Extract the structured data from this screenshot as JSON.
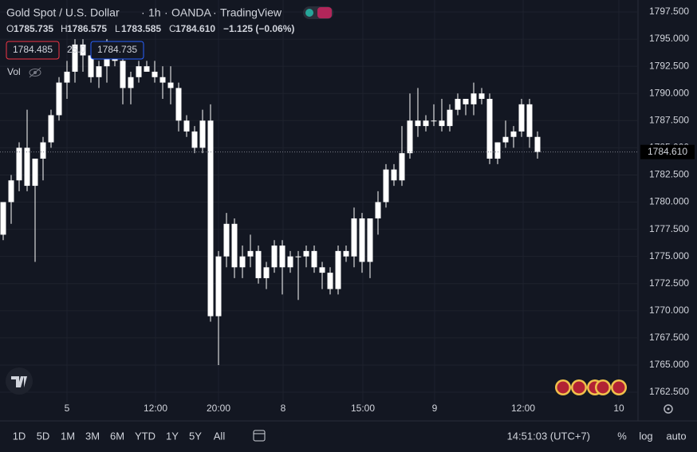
{
  "header": {
    "symbol": "Gold Spot / U.S. Dollar",
    "separator": "·",
    "interval": "1h",
    "exchange": "OANDA",
    "source": "TradingView"
  },
  "legend": {
    "ohlc": [
      {
        "label": "O",
        "value": "1785.735"
      },
      {
        "label": "H",
        "value": "1786.575"
      },
      {
        "label": "L",
        "value": "1783.585"
      },
      {
        "label": "C",
        "value": "1784.610"
      }
    ],
    "change": "−1.125 (−0.06%)",
    "sell": "1784.485",
    "spread": "25.0",
    "buy": "1784.735",
    "volume": "Vol"
  },
  "chart_data": {
    "type": "candlestick",
    "color": "#ffffff",
    "open": [
      1777,
      1780,
      1782,
      1785,
      1781.5,
      1784,
      1785.5,
      1788,
      1791,
      1792,
      1794.5,
      1793.5,
      1791.5,
      1792.5,
      1794,
      1793,
      1790.5,
      1791.5,
      1792.5,
      1792,
      1791.5,
      1791,
      1790.5,
      1787.5,
      1786.5,
      1785,
      1787.5,
      1769.5,
      1775,
      1778,
      1774,
      1775,
      1775.5,
      1773,
      1774,
      1776,
      1774,
      1775,
      1775,
      1775.5,
      1774,
      1773.5,
      1772,
      1775.5,
      1775,
      1778.5,
      1774.5,
      1778.5,
      1780,
      1783,
      1782,
      1784.5,
      1787.5,
      1787,
      1787.5,
      1787.5,
      1787,
      1788.5,
      1789.5,
      1789,
      1790,
      1789.5,
      1784,
      1785.5,
      1786,
      1786.5,
      1789,
      1786
    ],
    "high": [
      1780,
      1782.5,
      1785.5,
      1788.5,
      1784,
      1786,
      1788.5,
      1791.5,
      1793,
      1795,
      1795,
      1794.5,
      1793,
      1795,
      1794.5,
      1793.5,
      1792,
      1793,
      1793,
      1793,
      1792.5,
      1792.5,
      1791,
      1788,
      1787,
      1788.5,
      1789,
      1775.5,
      1779,
      1778.5,
      1776,
      1777,
      1776,
      1774.5,
      1776.5,
      1776.5,
      1775.5,
      1775.5,
      1776,
      1776,
      1774.5,
      1774,
      1776,
      1776,
      1779.5,
      1779,
      1778.5,
      1781,
      1783.5,
      1783.5,
      1787,
      1790,
      1790.5,
      1788,
      1789,
      1789.5,
      1789,
      1790,
      1789.5,
      1791,
      1790.5,
      1790,
      1785.5,
      1787.5,
      1787,
      1789.5,
      1789.5,
      1786.5
    ],
    "low": [
      1776.5,
      1778,
      1781,
      1781,
      1774.5,
      1782,
      1785,
      1787.5,
      1789.5,
      1791,
      1792,
      1791,
      1790.5,
      1791,
      1792.5,
      1789,
      1789,
      1791,
      1792,
      1791,
      1789.5,
      1789,
      1786.5,
      1786,
      1784.5,
      1784.5,
      1769,
      1765,
      1774,
      1773,
      1773,
      1774,
      1772.5,
      1772,
      1773.5,
      1771.5,
      1773.5,
      1771,
      1774,
      1773.5,
      1772,
      1771.5,
      1771.5,
      1774.5,
      1774,
      1773.5,
      1773,
      1777,
      1779.5,
      1781.5,
      1781.5,
      1784,
      1786,
      1786.5,
      1787,
      1786.5,
      1786.5,
      1788,
      1788,
      1788,
      1789,
      1783.5,
      1783.5,
      1785,
      1785,
      1786,
      1785,
      1784
    ],
    "close": [
      1780,
      1782,
      1785,
      1781.5,
      1784,
      1785.5,
      1788,
      1791,
      1792,
      1794.5,
      1793.5,
      1791.5,
      1792.5,
      1794,
      1793,
      1790.5,
      1791.5,
      1792.5,
      1792,
      1791.5,
      1791,
      1790.5,
      1787.5,
      1786.5,
      1785,
      1787.5,
      1769.5,
      1775,
      1778,
      1774,
      1775,
      1775.5,
      1773,
      1774,
      1776,
      1774,
      1775,
      1775,
      1775.5,
      1774,
      1773.5,
      1772,
      1775.5,
      1775,
      1778.5,
      1774.5,
      1778.5,
      1780,
      1783,
      1782,
      1784.5,
      1787.5,
      1787,
      1787.5,
      1787.5,
      1787,
      1788.5,
      1789.5,
      1789,
      1790,
      1789.5,
      1784,
      1785.5,
      1786,
      1786.5,
      1789,
      1786,
      1784.61
    ],
    "last_price": {
      "value": 1784.61,
      "label": "1784.610"
    },
    "xlim": [
      -0.4,
      79.6
    ],
    "xticks": [
      {
        "value": 8,
        "label": "5"
      },
      {
        "value": 19.1,
        "label": "12:00"
      },
      {
        "value": 27,
        "label": "20:00"
      },
      {
        "value": 35.1,
        "label": "8"
      },
      {
        "value": 45.1,
        "label": "15:00"
      },
      {
        "value": 54.1,
        "label": "9"
      },
      {
        "value": 65.2,
        "label": "12:00"
      },
      {
        "value": 77.2,
        "label": "10"
      }
    ],
    "ylim": [
      1761.55,
      1798.6
    ],
    "yticks": [
      {
        "value": 1762.5,
        "label": "1762.500"
      },
      {
        "value": 1765,
        "label": "1765.000"
      },
      {
        "value": 1767.5,
        "label": "1767.500"
      },
      {
        "value": 1770,
        "label": "1770.000"
      },
      {
        "value": 1772.5,
        "label": "1772.500"
      },
      {
        "value": 1775,
        "label": "1775.000"
      },
      {
        "value": 1777.5,
        "label": "1777.500"
      },
      {
        "value": 1780,
        "label": "1780.000"
      },
      {
        "value": 1782.5,
        "label": "1782.500"
      },
      {
        "value": 1785,
        "label": "1785.000"
      },
      {
        "value": 1787.5,
        "label": "1787.500"
      },
      {
        "value": 1790,
        "label": "1790.000"
      },
      {
        "value": 1792.5,
        "label": "1792.500"
      },
      {
        "value": 1795,
        "label": "1795.000"
      },
      {
        "value": 1797.5,
        "label": "1797.500"
      }
    ],
    "grid": true
  },
  "toolbar": {
    "ranges": [
      "1D",
      "5D",
      "1M",
      "3M",
      "6M",
      "YTD",
      "1Y",
      "5Y",
      "All"
    ],
    "clock": "14:51:03 (UTC+7)",
    "percent": "%",
    "log": "log",
    "auto": "auto"
  }
}
